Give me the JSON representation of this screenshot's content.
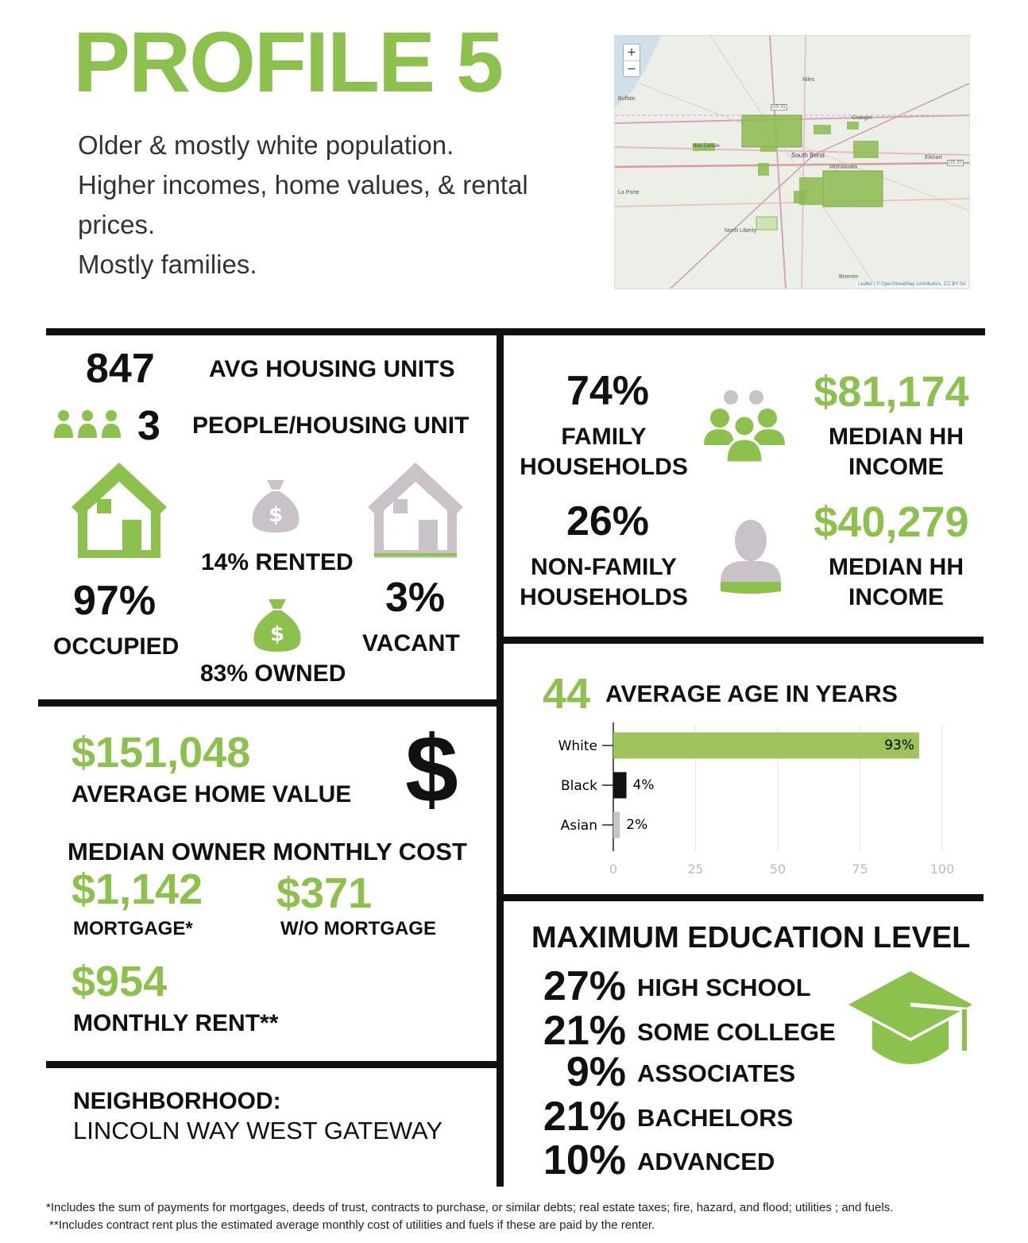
{
  "header": {
    "title": "PROFILE 5",
    "lines": [
      "Older & mostly white population.",
      "Higher incomes, home values, & rental",
      "prices.",
      "Mostly families."
    ]
  },
  "map": {
    "zoom_in": "+",
    "zoom_out": "−",
    "places": [
      "Niles",
      "Buffalo",
      "South Bend",
      "Mishawaka",
      "Elkhart",
      "La Porte",
      "North Liberty",
      "Bremen",
      "Granger",
      "New Carlisle",
      "US 31",
      "US 20"
    ],
    "attribution": "Leaflet | © OpenStreetMap contributors, CC-BY-SA"
  },
  "housing": {
    "units_value": "847",
    "units_label": "AVG HOUSING UNITS",
    "people_value": "3",
    "people_label": "PEOPLE/HOUSING UNIT",
    "occupied_pct": "97%",
    "occupied_label": "OCCUPIED",
    "rented_label": "14% RENTED",
    "owned_label": "83% OWNED",
    "vacant_pct": "3%",
    "vacant_label": "VACANT"
  },
  "households": {
    "family_pct": "74%",
    "family_label_1": "FAMILY",
    "family_label_2": "HOUSEHOLDS",
    "family_income": "$81,174",
    "income_label_1": "MEDIAN HH",
    "income_label_2": "INCOME",
    "nonfamily_pct": "26%",
    "nonfamily_label_1": "NON-FAMILY",
    "nonfamily_label_2": "HOUSEHOLDS",
    "nonfamily_income": "$40,279"
  },
  "home_value": {
    "value": "$151,048",
    "label": "AVERAGE HOME VALUE",
    "dollar_sign": "$",
    "owner_cost_title": "MEDIAN OWNER MONTHLY COST",
    "mortgage_value": "$1,142",
    "mortgage_label": "MORTGAGE*",
    "no_mortgage_value": "$371",
    "no_mortgage_label": "W/O MORTGAGE",
    "rent_value": "$954",
    "rent_label": "MONTHLY RENT**"
  },
  "neighborhood": {
    "label": "NEIGHBORHOOD:",
    "name": "LINCOLN WAY WEST GATEWAY"
  },
  "age": {
    "value": "44",
    "label": "AVERAGE AGE IN YEARS"
  },
  "chart_data": {
    "type": "bar",
    "orientation": "horizontal",
    "categories": [
      "White",
      "Black",
      "Asian"
    ],
    "values": [
      93,
      4,
      2
    ],
    "value_labels": [
      "93%",
      "4%",
      "2%"
    ],
    "colors": [
      "#9dc35a",
      "#111111",
      "#c9c2c8"
    ],
    "xlim": [
      0,
      100
    ],
    "xticks": [
      "0",
      "25",
      "50",
      "75",
      "100"
    ],
    "grid": true
  },
  "education": {
    "title": "MAXIMUM EDUCATION LEVEL",
    "levels": [
      {
        "pct": "27%",
        "label": "HIGH SCHOOL"
      },
      {
        "pct": "21%",
        "label": "SOME COLLEGE"
      },
      {
        "pct": "9%",
        "label": "ASSOCIATES"
      },
      {
        "pct": "21%",
        "label": "BACHELORS"
      },
      {
        "pct": "10%",
        "label": "ADVANCED"
      }
    ]
  },
  "footnotes": {
    "one": "*Includes the sum of payments for mortgages, deeds of trust, contracts to purchase, or similar debts; real estate taxes; fire, hazard, and flood; utilities ; and fuels.",
    "two": " **Includes contract rent plus the estimated average monthly cost of utilities and fuels if these are paid by the renter."
  },
  "colors": {
    "accent": "#8dc14d",
    "house_gray": "#c9c2c8",
    "divider": "#111111"
  }
}
